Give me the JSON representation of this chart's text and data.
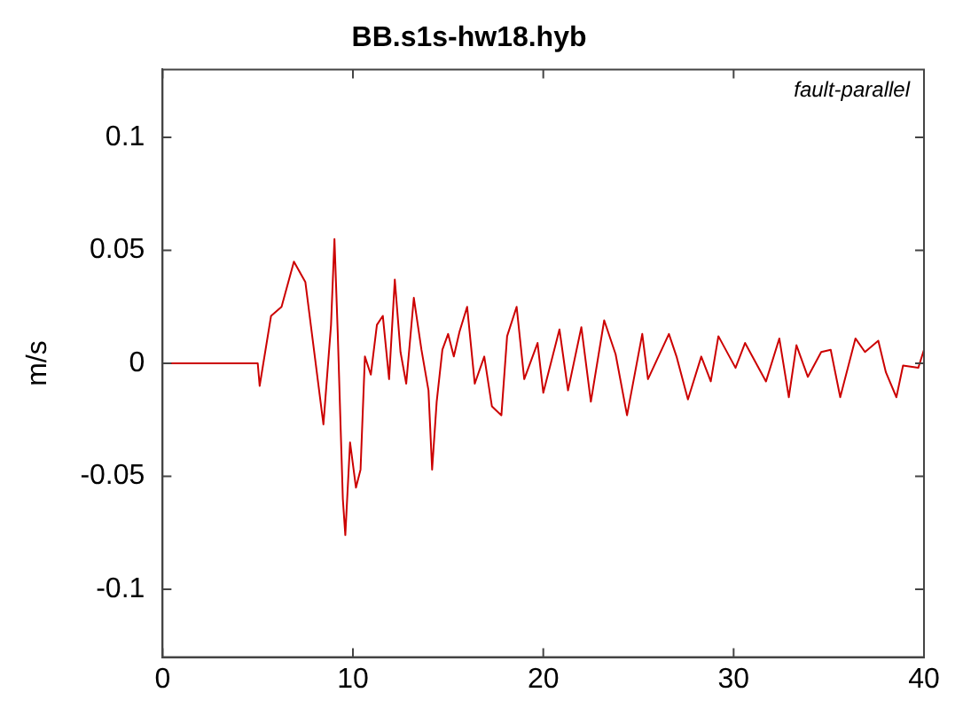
{
  "chart_data": {
    "type": "line",
    "title": "BB.s1s-hw18.hyb",
    "ylabel": "m/s",
    "annotations": [
      "fault-parallel"
    ],
    "x": [
      0,
      5.0,
      5.1,
      5.7,
      6.25,
      6.9,
      7.5,
      8.45,
      8.85,
      9.03,
      9.2,
      9.47,
      9.6,
      9.85,
      10.16,
      10.4,
      10.63,
      10.94,
      11.26,
      11.57,
      11.9,
      12.2,
      12.5,
      12.8,
      13.2,
      13.6,
      13.97,
      14.16,
      14.4,
      14.7,
      15.0,
      15.3,
      15.6,
      16.0,
      16.4,
      16.9,
      17.3,
      17.8,
      18.1,
      18.6,
      19.0,
      19.7,
      20.0,
      20.85,
      21.3,
      22.0,
      22.5,
      23.2,
      23.8,
      24.4,
      25.2,
      25.5,
      26.6,
      27.0,
      27.6,
      28.3,
      28.8,
      29.2,
      30.1,
      30.6,
      31.7,
      32.4,
      32.9,
      33.3,
      33.9,
      34.6,
      35.1,
      35.6,
      36.4,
      36.9,
      37.6,
      38.0,
      38.55,
      38.9,
      39.7,
      40.0
    ],
    "series": [
      {
        "color": "#cc0000",
        "values": [
          0,
          0,
          -0.01,
          0.021,
          0.025,
          0.045,
          0.036,
          -0.027,
          0.017,
          0.055,
          0.014,
          -0.06,
          -0.076,
          -0.035,
          -0.055,
          -0.047,
          0.003,
          -0.005,
          0.017,
          0.021,
          -0.007,
          0.037,
          0.005,
          -0.009,
          0.029,
          0.006,
          -0.012,
          -0.047,
          -0.017,
          0.006,
          0.013,
          0.003,
          0.014,
          0.025,
          -0.009,
          0.003,
          -0.019,
          -0.023,
          0.012,
          0.025,
          -0.007,
          0.009,
          -0.013,
          0.015,
          -0.012,
          0.016,
          -0.017,
          0.019,
          0.004,
          -0.023,
          0.013,
          -0.007,
          0.013,
          0.003,
          -0.016,
          0.003,
          -0.008,
          0.012,
          -0.002,
          0.009,
          -0.008,
          0.011,
          -0.015,
          0.008,
          -0.006,
          0.005,
          0.006,
          -0.015,
          0.011,
          0.005,
          0.01,
          -0.004,
          -0.015,
          -0.001,
          -0.002,
          0.006
        ]
      }
    ],
    "xlim": [
      0,
      40
    ],
    "xticks": [
      0,
      10,
      20,
      30,
      40
    ],
    "ylim": [
      -0.13,
      0.13
    ],
    "yticks": [
      -0.1,
      -0.05,
      0,
      0.05,
      0.1
    ],
    "grid": false,
    "legend": false,
    "marker": "none",
    "line_style": "solid"
  }
}
